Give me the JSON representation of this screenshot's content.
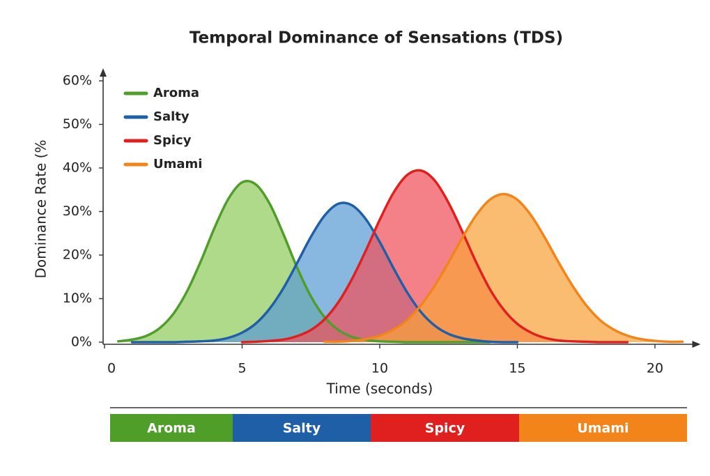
{
  "chart_data": {
    "type": "area",
    "title": "Temporal Dominance of Sensations (TDS)",
    "x_label": "Time (seconds)",
    "y_label": "Dominance Rate (%",
    "x": [
      0.5,
      1,
      1.5,
      2,
      2.5,
      3,
      3.5,
      4,
      4.5,
      5,
      5.5,
      6,
      6.5,
      7,
      7.5,
      8,
      8.5,
      9,
      9.5,
      10,
      10.5,
      11,
      11.5,
      12,
      12.5,
      13,
      13.5,
      14,
      14.5,
      15,
      15.5,
      16,
      16.5,
      17,
      17.5,
      18,
      18.5,
      19,
      19.5,
      20,
      20.5,
      21
    ],
    "series": [
      {
        "name": "Aroma",
        "color": "#4f9e2a",
        "fill": "#8fcc5c",
        "values": [
          0.2,
          0.6,
          1.4,
          3.2,
          6.5,
          11.7,
          18.6,
          26.3,
          32.9,
          36.7,
          36.2,
          31.8,
          24.8,
          17.1,
          10.5,
          5.7,
          2.8,
          1.2,
          0.5,
          0.2,
          0.1,
          0,
          0,
          0,
          0,
          0,
          0,
          0,
          null,
          null,
          null,
          null,
          null,
          null,
          null,
          null,
          null,
          null,
          null,
          null,
          null,
          null
        ]
      },
      {
        "name": "Salty",
        "color": "#1f5fa8",
        "fill": "#5a9bd4",
        "values": [
          null,
          0,
          0,
          0,
          0,
          0.1,
          0.2,
          0.4,
          1.0,
          2.2,
          4.3,
          7.7,
          12.4,
          18.2,
          24.2,
          29.1,
          31.8,
          31.4,
          28.2,
          23.0,
          17.0,
          11.4,
          6.9,
          3.8,
          1.9,
          0.9,
          0.4,
          0.1,
          0,
          0,
          null,
          null,
          null,
          null,
          null,
          null,
          null,
          null,
          null,
          null,
          null,
          null
        ]
      },
      {
        "name": "Spicy",
        "color": "#e0201e",
        "fill": "#f0505a",
        "values": [
          null,
          null,
          null,
          null,
          null,
          null,
          null,
          null,
          null,
          0,
          0.1,
          0.3,
          0.6,
          1.4,
          2.8,
          5.3,
          9.2,
          14.6,
          21.1,
          28.1,
          34.3,
          38.4,
          39.4,
          37.1,
          32.0,
          25.4,
          18.4,
          12.2,
          7.5,
          4.2,
          2.2,
          1.0,
          0.4,
          0.2,
          0.1,
          0,
          0,
          0,
          null,
          null,
          null,
          null
        ]
      },
      {
        "name": "Umami",
        "color": "#f2841a",
        "fill": "#f8a23a",
        "values": [
          null,
          null,
          null,
          null,
          null,
          null,
          null,
          null,
          null,
          null,
          null,
          null,
          null,
          null,
          null,
          0.1,
          0.1,
          0.3,
          0.7,
          1.5,
          2.9,
          5.1,
          8.5,
          13.0,
          18.3,
          24.0,
          29.1,
          32.7,
          34.0,
          32.7,
          29.1,
          24.0,
          18.3,
          13.0,
          8.5,
          5.1,
          2.9,
          1.5,
          0.7,
          0.3,
          0.1,
          0.1
        ]
      }
    ],
    "xlim": [
      0,
      21
    ],
    "xticks": [
      0,
      5,
      10,
      15,
      20
    ],
    "ylim": [
      0,
      60
    ],
    "yticks": [
      {
        "value": 0,
        "label": "0%"
      },
      {
        "value": 10,
        "label": "10%"
      },
      {
        "value": 20,
        "label": "20%"
      },
      {
        "value": 30,
        "label": "30%"
      },
      {
        "value": 40,
        "label": "40%"
      },
      {
        "value": 50,
        "label": "50%"
      },
      {
        "value": 60,
        "label": "60%"
      }
    ],
    "legend": "top-left"
  },
  "timeline": [
    "Aroma",
    "Salty",
    "Spicy",
    "Umami"
  ]
}
